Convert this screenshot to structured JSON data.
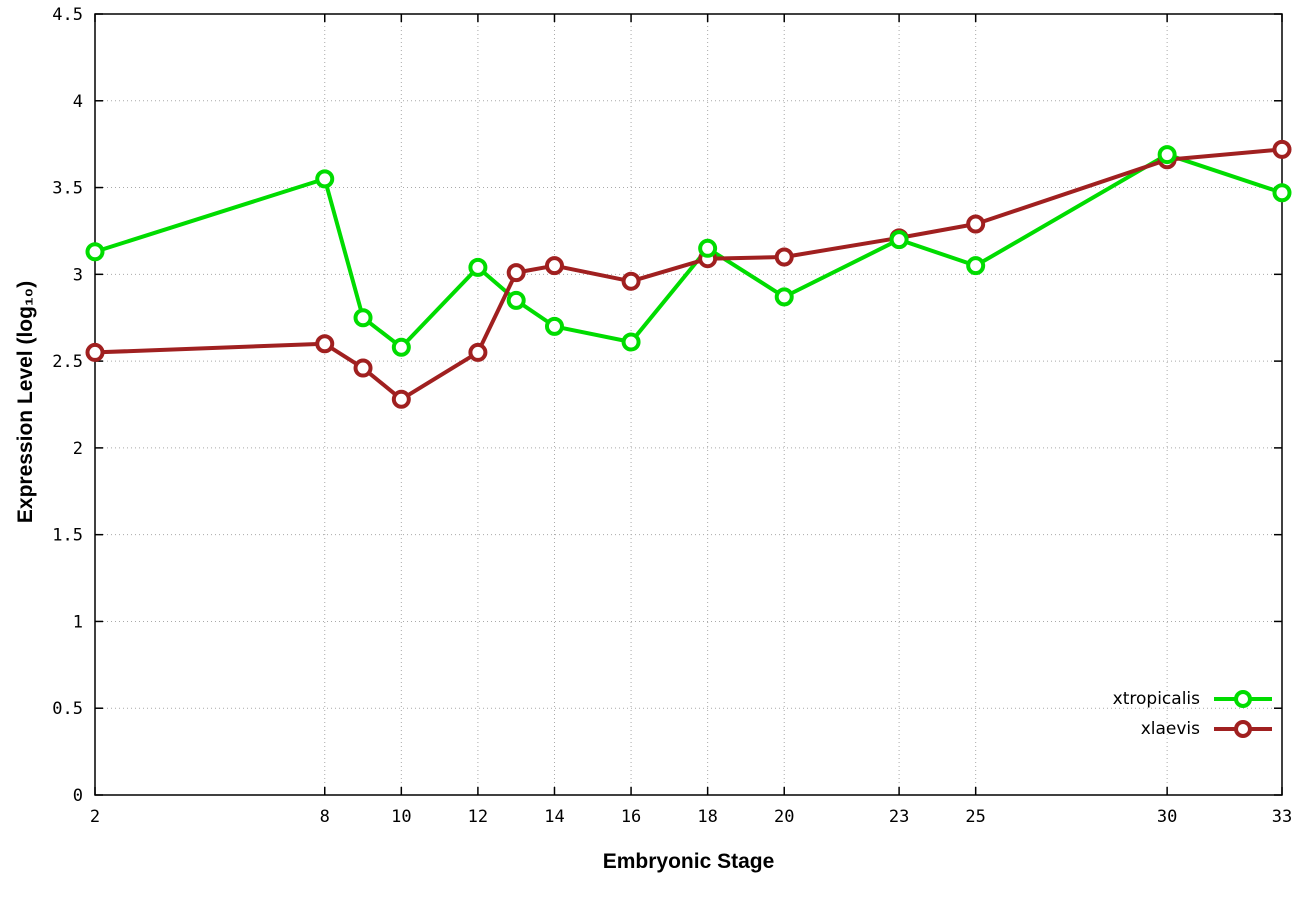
{
  "chart_data": {
    "type": "line",
    "title": "",
    "xlabel": "Embryonic Stage",
    "ylabel": "Expression Level (log₁₀)",
    "xlim": [
      2,
      33
    ],
    "ylim": [
      0,
      4.5
    ],
    "xticks": [
      2,
      8,
      10,
      12,
      14,
      16,
      18,
      20,
      23,
      25,
      30,
      33
    ],
    "yticks": [
      0,
      0.5,
      1,
      1.5,
      2,
      2.5,
      3,
      3.5,
      4,
      4.5
    ],
    "grid": true,
    "grid_style": "dotted",
    "legend_position": "bottom-right-inside",
    "marker": "open-circle",
    "background": "#ffffff",
    "x": [
      2,
      8,
      9,
      10,
      12,
      13,
      14,
      16,
      18,
      20,
      23,
      25,
      30,
      33
    ],
    "series": [
      {
        "name": "xtropicalis",
        "color": "#00dc00",
        "values": [
          3.13,
          3.55,
          2.75,
          2.58,
          3.04,
          2.85,
          2.7,
          2.61,
          3.15,
          2.87,
          3.2,
          3.05,
          3.69,
          3.47
        ]
      },
      {
        "name": "xlaevis",
        "color": "#a02020",
        "values": [
          2.55,
          2.6,
          2.46,
          2.28,
          2.55,
          3.01,
          3.05,
          2.96,
          3.09,
          3.1,
          3.21,
          3.29,
          3.66,
          3.72
        ]
      }
    ]
  }
}
